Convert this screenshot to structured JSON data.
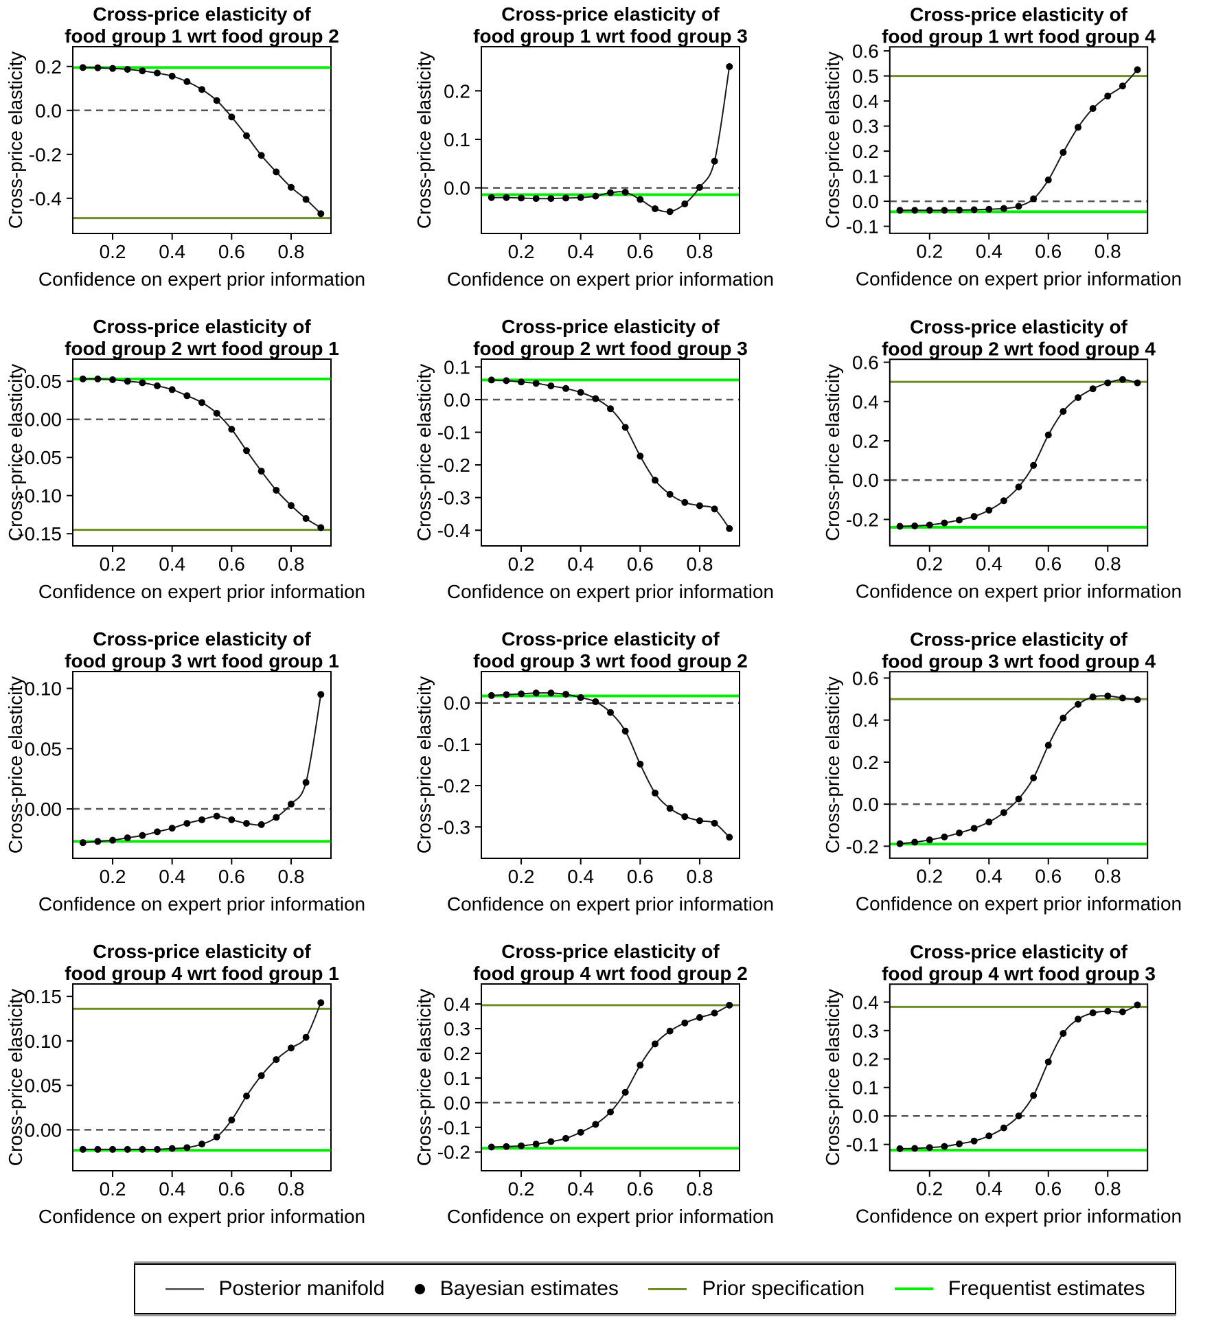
{
  "axis": {
    "xlabel": "Confidence on expert prior information",
    "ylabel": "Cross-price elasticity",
    "x_values": [
      0.1,
      0.15,
      0.2,
      0.25,
      0.3,
      0.35,
      0.4,
      0.45,
      0.5,
      0.55,
      0.6,
      0.65,
      0.7,
      0.75,
      0.8,
      0.85,
      0.9
    ],
    "x_ticks": [
      0.2,
      0.4,
      0.6,
      0.8
    ],
    "xlim": [
      0.066,
      0.934
    ],
    "zero_reference": 0.0
  },
  "colors": {
    "posterior_manifold": "#1a1a1a",
    "bayesian_points": "#000000",
    "prior_specification": "#6b8e23",
    "frequentist_estimates": "#00ee00",
    "zero_line": "#555555",
    "axis": "#000000",
    "legend_posterior_sample": "#666666"
  },
  "legend": {
    "items": [
      {
        "label": "Posterior manifold",
        "sample": "line",
        "color": "#666666"
      },
      {
        "label": "Bayesian estimates",
        "sample": "dot",
        "color": "#000000"
      },
      {
        "label": "Prior specification",
        "sample": "line",
        "color": "#6b8e23"
      },
      {
        "label": "Frequentist estimates",
        "sample": "line",
        "color": "#00ee00"
      }
    ]
  },
  "chart_data": [
    {
      "type": "line",
      "title_line1": "Cross-price elasticity of",
      "title_line2": "food group 1 wrt food group 2",
      "y": [
        0.195,
        0.194,
        0.191,
        0.187,
        0.18,
        0.17,
        0.156,
        0.131,
        0.095,
        0.045,
        -0.03,
        -0.115,
        -0.205,
        -0.28,
        -0.35,
        -0.405,
        -0.47
      ],
      "prior": -0.49,
      "frequentist": 0.195,
      "ylim": [
        -0.56,
        0.29
      ],
      "y_ticks": [
        0.2,
        0.0,
        -0.2,
        -0.4
      ],
      "decimals": 1
    },
    {
      "type": "line",
      "title_line1": "Cross-price elasticity of",
      "title_line2": "food group 1 wrt food group 3",
      "y": [
        -0.02,
        -0.02,
        -0.021,
        -0.022,
        -0.022,
        -0.021,
        -0.02,
        -0.017,
        -0.01,
        -0.009,
        -0.024,
        -0.043,
        -0.049,
        -0.033,
        0.001,
        0.055,
        0.25
      ],
      "prior": -0.014,
      "frequentist": -0.014,
      "ylim": [
        -0.094,
        0.291
      ],
      "y_ticks": [
        0.0,
        0.1,
        0.2
      ],
      "decimals": 1
    },
    {
      "type": "line",
      "title_line1": "Cross-price elasticity of",
      "title_line2": "food group 1 wrt food group 4",
      "y": [
        -0.036,
        -0.036,
        -0.036,
        -0.036,
        -0.035,
        -0.034,
        -0.032,
        -0.029,
        -0.02,
        0.01,
        0.085,
        0.195,
        0.295,
        0.37,
        0.42,
        0.46,
        0.525
      ],
      "prior": 0.5,
      "frequentist": -0.042,
      "ylim": [
        -0.128,
        0.616
      ],
      "y_ticks": [
        -0.1,
        0.0,
        0.1,
        0.2,
        0.3,
        0.4,
        0.5,
        0.6
      ],
      "decimals": 1
    },
    {
      "type": "line",
      "title_line1": "Cross-price elasticity of",
      "title_line2": "food group 2 wrt food group 1",
      "y": [
        0.053,
        0.053,
        0.052,
        0.05,
        0.048,
        0.044,
        0.039,
        0.031,
        0.022,
        0.008,
        -0.013,
        -0.041,
        -0.068,
        -0.093,
        -0.113,
        -0.13,
        -0.142
      ],
      "prior": -0.145,
      "frequentist": 0.053,
      "ylim": [
        -0.166,
        0.079
      ],
      "y_ticks": [
        0.05,
        0.0,
        -0.05,
        -0.1,
        -0.15
      ],
      "decimals": 2
    },
    {
      "type": "line",
      "title_line1": "Cross-price elasticity of",
      "title_line2": "food group 2 wrt food group 3",
      "y": [
        0.06,
        0.058,
        0.054,
        0.05,
        0.042,
        0.034,
        0.022,
        0.003,
        -0.028,
        -0.085,
        -0.173,
        -0.247,
        -0.29,
        -0.315,
        -0.325,
        -0.335,
        -0.395
      ],
      "prior": 0.06,
      "frequentist": 0.06,
      "ylim": [
        -0.448,
        0.124
      ],
      "y_ticks": [
        0.1,
        0.0,
        -0.1,
        -0.2,
        -0.3,
        -0.4
      ],
      "decimals": 1
    },
    {
      "type": "line",
      "title_line1": "Cross-price elasticity of",
      "title_line2": "food group 2 wrt food group 4",
      "y": [
        -0.235,
        -0.233,
        -0.228,
        -0.218,
        -0.203,
        -0.185,
        -0.153,
        -0.105,
        -0.035,
        0.075,
        0.23,
        0.35,
        0.42,
        0.465,
        0.495,
        0.512,
        0.495
      ],
      "prior": 0.5,
      "frequentist": -0.24,
      "ylim": [
        -0.334,
        0.615
      ],
      "y_ticks": [
        -0.2,
        0.0,
        0.2,
        0.4,
        0.6
      ],
      "decimals": 1
    },
    {
      "type": "line",
      "title_line1": "Cross-price elasticity of",
      "title_line2": "food group 3 wrt food group 1",
      "y": [
        -0.028,
        -0.027,
        -0.026,
        -0.024,
        -0.022,
        -0.019,
        -0.016,
        -0.012,
        -0.009,
        -0.006,
        -0.009,
        -0.012,
        -0.013,
        -0.007,
        0.004,
        0.022,
        0.095
      ],
      "prior": -0.027,
      "frequentist": -0.027,
      "ylim": [
        -0.041,
        0.114
      ],
      "y_ticks": [
        0.0,
        0.05,
        0.1
      ],
      "decimals": 2
    },
    {
      "type": "line",
      "title_line1": "Cross-price elasticity of",
      "title_line2": "food group 3 wrt food group 2",
      "y": [
        0.018,
        0.02,
        0.022,
        0.024,
        0.024,
        0.021,
        0.013,
        0.003,
        -0.023,
        -0.068,
        -0.148,
        -0.218,
        -0.255,
        -0.275,
        -0.285,
        -0.291,
        -0.325
      ],
      "prior": 0.017,
      "frequentist": 0.017,
      "ylim": [
        -0.376,
        0.076
      ],
      "y_ticks": [
        0.0,
        -0.1,
        -0.2,
        -0.3
      ],
      "decimals": 1
    },
    {
      "type": "line",
      "title_line1": "Cross-price elasticity of",
      "title_line2": "food group 3 wrt food group 4",
      "y": [
        -0.188,
        -0.181,
        -0.17,
        -0.156,
        -0.137,
        -0.115,
        -0.085,
        -0.04,
        0.025,
        0.125,
        0.28,
        0.41,
        0.475,
        0.51,
        0.515,
        0.505,
        0.497
      ],
      "prior": 0.5,
      "frequentist": -0.19,
      "ylim": [
        -0.257,
        0.63
      ],
      "y_ticks": [
        -0.2,
        0.0,
        0.2,
        0.4,
        0.6
      ],
      "decimals": 1
    },
    {
      "type": "line",
      "title_line1": "Cross-price elasticity of",
      "title_line2": "food group 4 wrt food group 1",
      "y": [
        -0.022,
        -0.022,
        -0.022,
        -0.022,
        -0.022,
        -0.022,
        -0.021,
        -0.02,
        -0.016,
        -0.008,
        0.011,
        0.038,
        0.061,
        0.079,
        0.092,
        0.104,
        0.143
      ],
      "prior": 0.136,
      "frequentist": -0.023,
      "ylim": [
        -0.046,
        0.164
      ],
      "y_ticks": [
        0.0,
        0.05,
        0.1,
        0.15
      ],
      "decimals": 2
    },
    {
      "type": "line",
      "title_line1": "Cross-price elasticity of",
      "title_line2": "food group 4 wrt food group 2",
      "y": [
        -0.18,
        -0.178,
        -0.175,
        -0.168,
        -0.158,
        -0.145,
        -0.12,
        -0.088,
        -0.038,
        0.042,
        0.152,
        0.238,
        0.29,
        0.323,
        0.345,
        0.363,
        0.395
      ],
      "prior": 0.395,
      "frequentist": -0.185,
      "ylim": [
        -0.276,
        0.481
      ],
      "y_ticks": [
        0.4,
        0.3,
        0.2,
        0.1,
        0.0,
        -0.1,
        -0.2
      ],
      "decimals": 1
    },
    {
      "type": "line",
      "title_line1": "Cross-price elasticity of",
      "title_line2": "food group 4 wrt food group 3",
      "y": [
        -0.115,
        -0.114,
        -0.111,
        -0.107,
        -0.098,
        -0.088,
        -0.07,
        -0.042,
        0.0,
        0.072,
        0.19,
        0.29,
        0.34,
        0.362,
        0.368,
        0.366,
        0.39
      ],
      "prior": 0.383,
      "frequentist": -0.12,
      "ylim": [
        -0.192,
        0.463
      ],
      "y_ticks": [
        0.4,
        0.3,
        0.2,
        0.1,
        0.0,
        -0.1
      ],
      "decimals": 1
    }
  ]
}
